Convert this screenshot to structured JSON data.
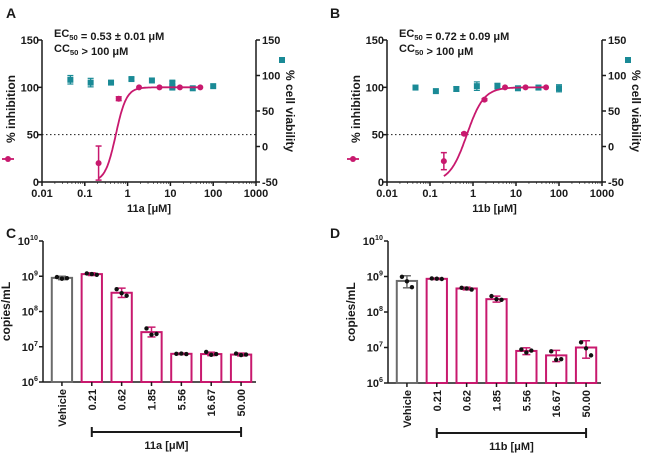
{
  "colors": {
    "inhibition": "#c8196e",
    "viability": "#1a8a96",
    "vehicle": "#6b6b6b",
    "axis": "#1a1a1a",
    "dots": "#111111"
  },
  "chart_data": [
    {
      "panel": "A",
      "type": "scatter",
      "title": "",
      "annotation": [
        "EC50 = 0.53 ± 0.01 μM",
        "CC50 > 100 μM"
      ],
      "xlabel": "11a [μM]",
      "ylabel": "% inhibition",
      "y2label": "% cell viability",
      "xscale": "log",
      "xlim": [
        0.01,
        1000
      ],
      "ylim": [
        0,
        150
      ],
      "y2lim": [
        -50,
        150
      ],
      "xticks": [
        "0.01",
        "0.1",
        "1",
        "10",
        "100",
        "1000"
      ],
      "yticks": [
        "0",
        "50",
        "100",
        "150"
      ],
      "y2ticks": [
        "-50",
        "0",
        "50",
        "100",
        "150"
      ],
      "reference_line": 50,
      "series": [
        {
          "name": "% inhibition",
          "axis": "left",
          "x": [
            0.21,
            0.62,
            1.85,
            5.56,
            16.67,
            50
          ],
          "y": [
            20,
            88,
            100,
            100,
            100,
            100
          ],
          "err": [
            18,
            2,
            0,
            0,
            0,
            0
          ],
          "fit": {
            "ec50": 0.53,
            "hill": 3.5,
            "bottom": 0,
            "top": 100
          }
        },
        {
          "name": "% cell viability",
          "axis": "right",
          "x": [
            0.046,
            0.137,
            0.41,
            1.23,
            3.7,
            11.1,
            11.1,
            33.3,
            100
          ],
          "y": [
            94,
            90,
            90,
            95,
            93,
            90,
            83,
            82,
            85
          ],
          "err": [
            6,
            6,
            2,
            2,
            1,
            2,
            2,
            1,
            1
          ]
        }
      ]
    },
    {
      "panel": "B",
      "type": "scatter",
      "title": "",
      "annotation": [
        "EC50 = 0.72 ± 0.09 μM",
        "CC50 > 100 μM"
      ],
      "xlabel": "11b [μM]",
      "ylabel": "% inhibition",
      "y2label": "% cell viability",
      "xscale": "log",
      "xlim": [
        0.01,
        1000
      ],
      "ylim": [
        0,
        150
      ],
      "y2lim": [
        -50,
        150
      ],
      "xticks": [
        "0.01",
        "0.1",
        "1",
        "10",
        "100",
        "1000"
      ],
      "yticks": [
        "0",
        "50",
        "100",
        "150"
      ],
      "y2ticks": [
        "-50",
        "0",
        "50",
        "100",
        "150"
      ],
      "reference_line": 50,
      "series": [
        {
          "name": "% inhibition",
          "axis": "left",
          "x": [
            0.21,
            0.62,
            1.85,
            5.56,
            16.67,
            50
          ],
          "y": [
            22,
            51,
            87,
            100,
            100,
            100
          ],
          "err": [
            9,
            1,
            1,
            0,
            0,
            0
          ],
          "fit": {
            "ec50": 0.72,
            "hill": 2.2,
            "bottom": 0,
            "top": 100
          }
        },
        {
          "name": "% cell viability",
          "axis": "right",
          "x": [
            0.046,
            0.137,
            0.41,
            1.23,
            3.7,
            11.1,
            33.3,
            100
          ],
          "y": [
            83,
            78,
            81,
            85,
            85,
            82,
            83,
            82
          ],
          "err": [
            3,
            1,
            3,
            6,
            4,
            1,
            3,
            5
          ]
        }
      ]
    },
    {
      "panel": "C",
      "type": "bar",
      "yscale": "log",
      "ylabel": "copies/mL",
      "xlabel": "11a [μM]",
      "ylim": [
        1000000.0,
        10000000000.0
      ],
      "yticks": [
        "10^6",
        "10^7",
        "10^8",
        "10^9",
        "10^10"
      ],
      "categories": [
        "Vehicle",
        "0.21",
        "0.62",
        "1.85",
        "5.56",
        "16.67",
        "50.00"
      ],
      "values": [
        900000000.0,
        1150000000.0,
        340000000.0,
        26000000.0,
        6300000.0,
        6200000.0,
        6000000.0
      ],
      "err": [
        [
          800000000.0,
          1000000000.0
        ],
        [
          1050000000.0,
          1250000000.0
        ],
        [
          250000000.0,
          460000000.0
        ],
        [
          19000000.0,
          36000000.0
        ],
        [
          6000000.0,
          6600000.0
        ],
        [
          5600000.0,
          7000000.0
        ],
        [
          5500000.0,
          6600000.0
        ]
      ],
      "points": [
        [
          950000000.0,
          850000000.0,
          880000000.0
        ],
        [
          1200000000.0,
          1150000000.0,
          1100000000.0
        ],
        [
          430000000.0,
          330000000.0,
          280000000.0
        ],
        [
          33000000.0,
          22000000.0,
          23000000.0
        ],
        [
          6300000.0,
          6400000.0,
          6200000.0
        ],
        [
          7100000.0,
          5900000.0,
          6200000.0
        ],
        [
          6400000.0,
          5800000.0,
          6000000.0
        ]
      ],
      "bracket_label": "11a [μM]"
    },
    {
      "panel": "D",
      "type": "bar",
      "yscale": "log",
      "ylabel": "copies/mL",
      "xlabel": "11b [μM]",
      "ylim": [
        1000000.0,
        10000000000.0
      ],
      "yticks": [
        "10^6",
        "10^7",
        "10^8",
        "10^9",
        "10^10"
      ],
      "categories": [
        "Vehicle",
        "0.21",
        "0.62",
        "1.85",
        "5.56",
        "16.67",
        "50.00"
      ],
      "values": [
        750000000.0,
        860000000.0,
        460000000.0,
        230000000.0,
        8000000.0,
        6000000.0,
        10000000.0
      ],
      "err": [
        [
          480000000.0,
          1050000000.0
        ],
        [
          820000000.0,
          900000000.0
        ],
        [
          420000000.0,
          500000000.0
        ],
        [
          190000000.0,
          280000000.0
        ],
        [
          6300000.0,
          9800000.0
        ],
        [
          4000000.0,
          8300000.0
        ],
        [
          5000000.0,
          15500000.0
        ]
      ],
      "points": [
        [
          980000000.0,
          730000000.0,
          500000000.0
        ],
        [
          880000000.0,
          870000000.0,
          850000000.0
        ],
        [
          480000000.0,
          460000000.0,
          430000000.0
        ],
        [
          280000000.0,
          230000000.0,
          220000000.0
        ],
        [
          8800000.0,
          7200000.0,
          8200000.0
        ],
        [
          7800000.0,
          4500000.0,
          4700000.0
        ],
        [
          14000000.0,
          9500000.0,
          6000000.0
        ]
      ],
      "bracket_label": "11b [μM]"
    }
  ],
  "panel_labels": [
    "A",
    "B",
    "C",
    "D"
  ]
}
